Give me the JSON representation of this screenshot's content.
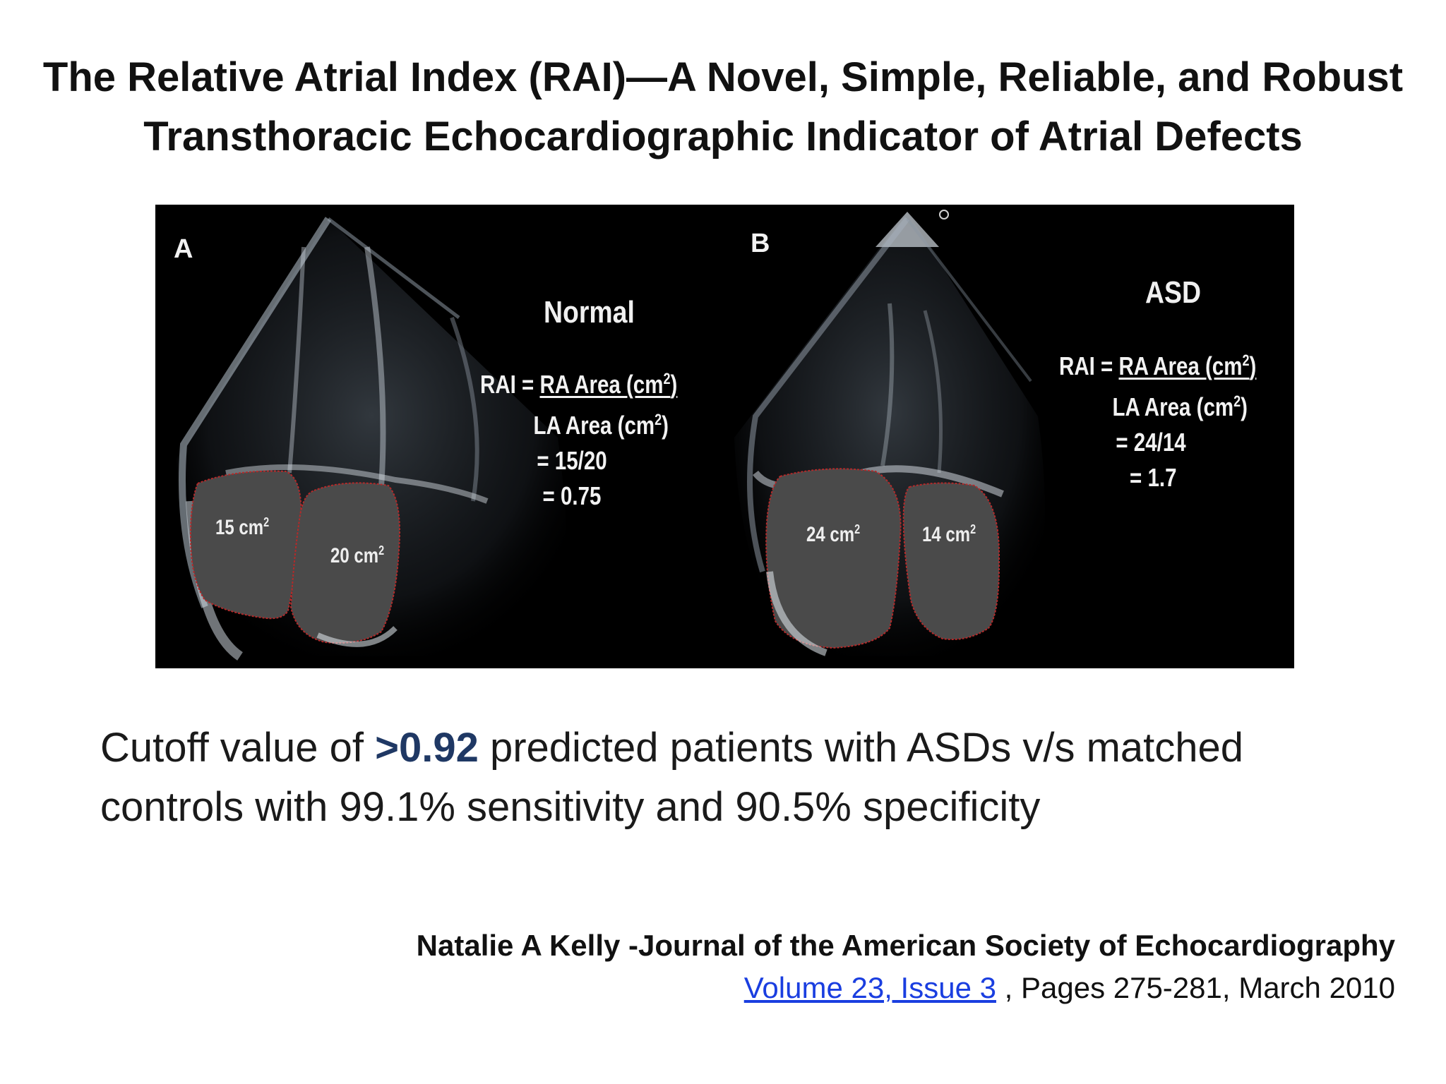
{
  "title": {
    "line1": "The Relative Atrial Index (RAI)—A Novel, Simple, Reliable, and Robust",
    "line2": "Transthoracic Echocardiographic Indicator of Atrial Defects"
  },
  "figure": {
    "panel_a": {
      "letter": "A",
      "title": "Normal",
      "rai_prefix": "RAI = ",
      "numerator": "RA Area (cm",
      "denominator": "LA Area (cm",
      "ratio": "= 15/20",
      "result": "= 0.75",
      "ra_area_value": "15 cm",
      "la_area_value": "20 cm"
    },
    "panel_b": {
      "letter": "B",
      "title": "ASD",
      "rai_prefix": "RAI = ",
      "numerator": "RA Area (cm",
      "denominator": "LA Area (cm",
      "ratio": "= 24/14",
      "result": "= 1.7",
      "ra_area_value": "24 cm",
      "la_area_value": "14 cm"
    },
    "sup_2": "2",
    "close_paren": ")"
  },
  "body": {
    "prefix": "Cutoff value of ",
    "highlight": ">0.92",
    "suffix": " predicted patients with ASDs v/s matched",
    "line2": "controls with 99.1% sensitivity and 90.5% specificity"
  },
  "citation": {
    "author": "Natalie A Kelly -Journal of the American Society of Echocardiography",
    "link": "Volume 23, Issue 3",
    "rest": " , Pages 275-281, March 2010"
  },
  "colors": {
    "highlight": "#1f3864",
    "link": "#1a3ee0",
    "contour": "#b22a2a"
  }
}
